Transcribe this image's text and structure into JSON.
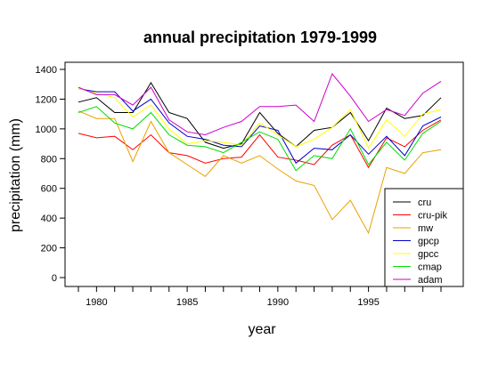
{
  "chart_data": {
    "type": "line",
    "title": "annual precipitation 1979-1999",
    "xlabel": "year",
    "ylabel": "precipitation (mm)",
    "xlim": [
      1979,
      1999
    ],
    "ylim": [
      0,
      1400
    ],
    "xticks": [
      1980,
      1985,
      1990,
      1995
    ],
    "yticks": [
      0,
      200,
      400,
      600,
      800,
      1000,
      1200,
      1400
    ],
    "grid": false,
    "legend_position": "bottom-right",
    "x": [
      1979,
      1980,
      1981,
      1982,
      1983,
      1984,
      1985,
      1986,
      1987,
      1988,
      1989,
      1990,
      1991,
      1992,
      1993,
      1994,
      1995,
      1996,
      1997,
      1998,
      1999
    ],
    "series": [
      {
        "name": "cru",
        "color": "#000000",
        "values": [
          1180,
          1210,
          1110,
          1110,
          1310,
          1110,
          1070,
          910,
          870,
          900,
          1110,
          970,
          880,
          990,
          1010,
          1110,
          920,
          1140,
          1070,
          1090,
          1210
        ]
      },
      {
        "name": "cru-pik",
        "color": "#ff0000",
        "values": [
          970,
          940,
          950,
          860,
          960,
          840,
          820,
          770,
          800,
          810,
          960,
          810,
          790,
          760,
          890,
          960,
          740,
          940,
          880,
          990,
          1060
        ]
      },
      {
        "name": "mw",
        "color": "#e8a200",
        "values": [
          1120,
          1070,
          1070,
          780,
          1050,
          840,
          760,
          680,
          820,
          770,
          820,
          730,
          650,
          620,
          390,
          520,
          300,
          740,
          700,
          840,
          860
        ]
      },
      {
        "name": "gpcp",
        "color": "#0000cc",
        "values": [
          1270,
          1250,
          1250,
          1120,
          1200,
          1040,
          950,
          930,
          890,
          880,
          1020,
          990,
          770,
          870,
          860,
          960,
          830,
          950,
          820,
          1020,
          1080
        ]
      },
      {
        "name": "gpcc",
        "color": "#ffff00",
        "values": [
          1270,
          1240,
          1210,
          1080,
          1160,
          1000,
          900,
          920,
          910,
          890,
          1040,
          960,
          880,
          930,
          1010,
          1130,
          870,
          1060,
          950,
          1100,
          1130
        ]
      },
      {
        "name": "cmap",
        "color": "#00dd00",
        "values": [
          1110,
          1150,
          1040,
          1000,
          1110,
          960,
          890,
          880,
          840,
          910,
          980,
          930,
          720,
          820,
          800,
          1000,
          760,
          910,
          790,
          970,
          1050
        ]
      },
      {
        "name": "adam",
        "color": "#cc00cc",
        "values": [
          1280,
          1230,
          1230,
          1160,
          1280,
          1060,
          980,
          960,
          1010,
          1050,
          1150,
          1150,
          1160,
          1050,
          1370,
          1220,
          1050,
          1130,
          1090,
          1240,
          1320
        ]
      }
    ]
  }
}
